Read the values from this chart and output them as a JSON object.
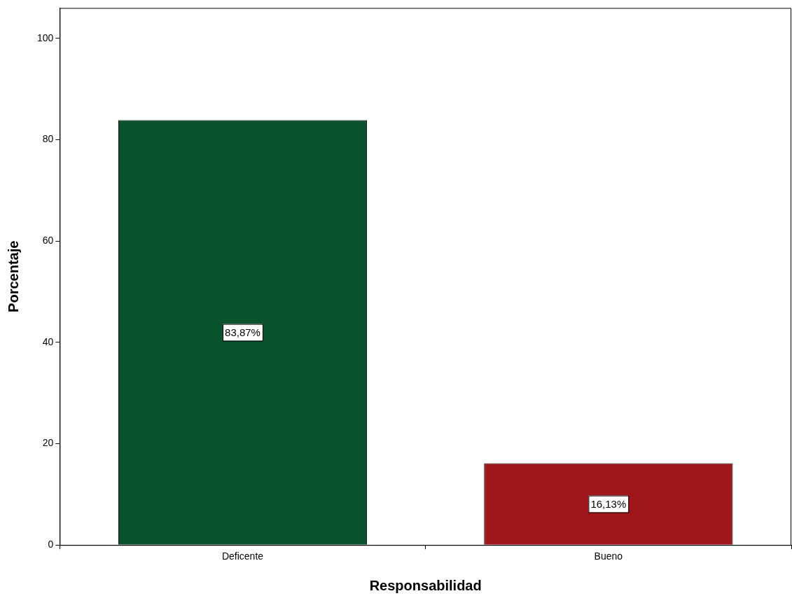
{
  "chart_data": {
    "type": "bar",
    "xlabel": "Responsabilidad",
    "ylabel": "Porcentaje",
    "categories": [
      "Deficente",
      "Bueno"
    ],
    "values": [
      83.87,
      16.13
    ],
    "colors": [
      "#0b532c",
      "#a0171b"
    ],
    "value_labels": [
      "83,87%",
      "16,13%"
    ],
    "ylim": [
      0,
      106
    ],
    "yticks": [
      0,
      20,
      40,
      60,
      80,
      100
    ],
    "grid": false,
    "legend": false
  }
}
